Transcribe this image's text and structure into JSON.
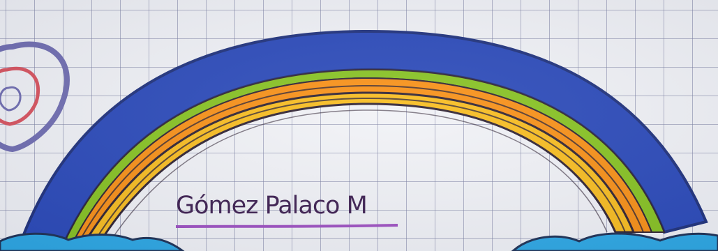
{
  "drawing": {
    "signature_text": "Gómez Palaco M",
    "colors": {
      "paper": "#f1f2f6",
      "grid": "#8a8fb4",
      "blue": "#2847b8",
      "green": "#86c21e",
      "orange": "#f98f12",
      "yellow": "#f9bc1b",
      "outline": "#2d2030",
      "underline": "#9d4ec0",
      "heart_outer": "#6f6cb0",
      "heart_inner": "#d9515c",
      "cloud": "#2aa7e4"
    }
  }
}
